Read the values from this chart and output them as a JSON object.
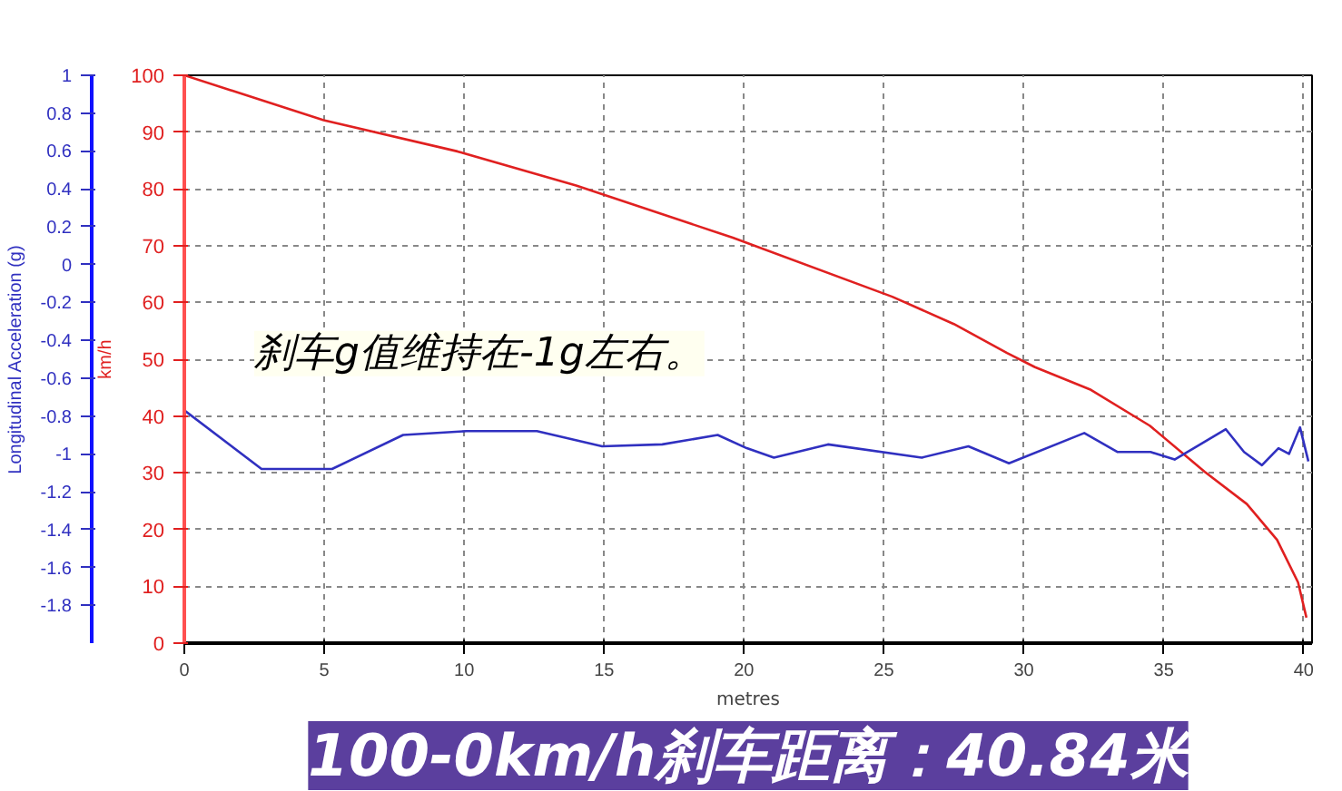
{
  "chart_data": {
    "type": "line",
    "xlabel": "metres",
    "ylabel": "km/h",
    "y2label": "Longitudinal Acceleration (g)",
    "annotations": [
      "刹车g值维持在-1g左右。",
      "100-0km/h刹车距离：40.84米"
    ],
    "xlim": [
      0,
      40.3
    ],
    "xticks": [
      0,
      5,
      10,
      15,
      20,
      25,
      30,
      35,
      40
    ],
    "ylim": [
      0,
      100
    ],
    "yticks": [
      0,
      10,
      20,
      30,
      40,
      50,
      60,
      70,
      80,
      90,
      100
    ],
    "y2lim": [
      -2,
      1
    ],
    "y2ticks": [
      1,
      0.8,
      0.6,
      0.4,
      0.2,
      0,
      -0.2,
      -0.4,
      -0.6,
      -0.8,
      -1,
      -1.2,
      -1.4,
      -1.6,
      -1.8
    ],
    "grid": true,
    "line_style": "solid",
    "series": [
      {
        "color": "#e02020",
        "x": [
          0,
          4.98,
          9.76,
          14.0,
          19.6,
          25.3,
          27.5,
          29.4,
          30.4,
          32.4,
          34.5,
          36.46,
          37.97,
          39.05,
          39.8,
          40.1
        ],
        "values": [
          100,
          92.1,
          86.6,
          80.6,
          71.4,
          61.0,
          56.2,
          51.1,
          48.6,
          44.6,
          38.3,
          30.2,
          24.5,
          18.2,
          10.7,
          4.5
        ]
      },
      {
        "color": "#3030c0",
        "axis": "y2",
        "x": [
          0,
          2.76,
          5.28,
          7.82,
          10.08,
          12.6,
          14.93,
          17.08,
          19.06,
          20.1,
          21.07,
          23.0,
          26.35,
          28.02,
          29.47,
          32.16,
          33.34,
          34.53,
          35.39,
          37.22,
          37.87,
          38.51,
          39.1,
          39.48,
          39.87,
          40.17
        ],
        "values": [
          -0.77,
          -1.08,
          -1.08,
          -0.9,
          -0.88,
          -0.88,
          -0.96,
          -0.95,
          -0.9,
          -0.97,
          -1.02,
          -0.95,
          -1.02,
          -0.96,
          -1.05,
          -0.89,
          -0.99,
          -0.99,
          -1.03,
          -0.87,
          -0.99,
          -1.06,
          -0.97,
          -1.0,
          -0.86,
          -1.04
        ]
      }
    ]
  }
}
